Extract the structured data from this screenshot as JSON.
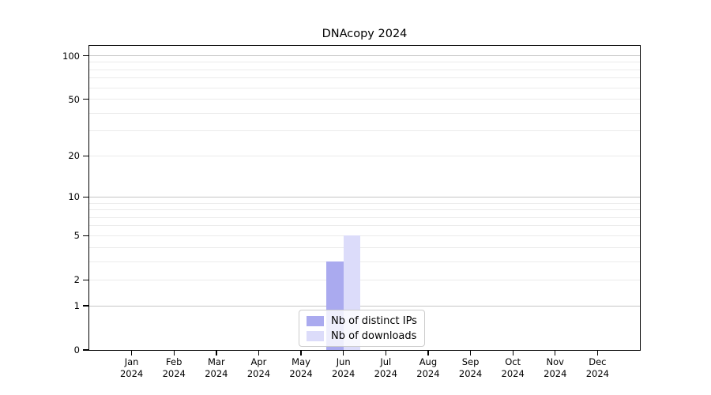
{
  "chart_data": {
    "type": "bar",
    "title": "DNAcopy 2024",
    "categories": [
      "Jan",
      "Feb",
      "Mar",
      "Apr",
      "May",
      "Jun",
      "Jul",
      "Aug",
      "Sep",
      "Oct",
      "Nov",
      "Dec"
    ],
    "year_label": "2024",
    "series": [
      {
        "name": "Nb of distinct IPs",
        "color": "#aaaaef",
        "values": [
          0,
          0,
          0,
          0,
          0,
          3,
          0,
          0,
          0,
          0,
          0,
          0
        ]
      },
      {
        "name": "Nb of downloads",
        "color": "#dcdcfa",
        "values": [
          0,
          0,
          0,
          0,
          0,
          5,
          0,
          0,
          0,
          0,
          0,
          0
        ]
      }
    ],
    "xlabel": "",
    "ylabel": "",
    "yscale": "log1p",
    "ylim": [
      0,
      117
    ],
    "ytick_values": [
      100,
      50,
      20,
      10,
      5,
      2,
      1,
      0
    ],
    "grid": {
      "major_values": [
        1,
        10,
        100
      ],
      "minor_values": [
        2,
        3,
        4,
        5,
        6,
        7,
        8,
        9,
        20,
        30,
        40,
        50,
        60,
        70,
        80,
        90
      ],
      "major_color": "#c5c5c5",
      "minor_color": "#ebebeb"
    },
    "legend": {
      "position": "lower center",
      "entries": [
        "Nb of distinct IPs",
        "Nb of downloads"
      ]
    },
    "colors": {
      "background": "#ffffff",
      "spine": "#000000",
      "bar_distinct_ips": "#aaaaef",
      "bar_downloads": "#dcdcfa"
    }
  }
}
